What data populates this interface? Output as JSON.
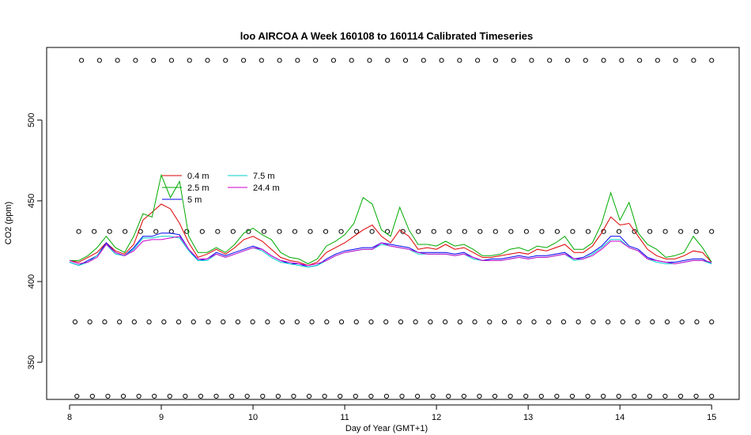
{
  "chart_data": {
    "type": "line",
    "title": "loo AIRCOA A  Week 160108 to 160114  Calibrated Timeseries",
    "xlabel": "Day of Year (GMT+1)",
    "ylabel": "CO2 (ppm)",
    "xlim": [
      7.75,
      15.3
    ],
    "ylim": [
      327,
      545
    ],
    "x_ticks": [
      8,
      9,
      10,
      11,
      12,
      13,
      14,
      15
    ],
    "x_tick_labels": [
      "8",
      "9",
      "10",
      "11",
      "12",
      "13",
      "14",
      "15"
    ],
    "y_ticks": [
      350,
      400,
      450,
      500
    ],
    "y_tick_labels": [
      "350",
      "400",
      "450",
      "500"
    ],
    "legend_position": "top-left",
    "series": [
      {
        "name": "0.4 m",
        "color": "#dd0000",
        "x": [
          8.0,
          8.1,
          8.2,
          8.3,
          8.4,
          8.5,
          8.6,
          8.7,
          8.8,
          8.9,
          9.0,
          9.1,
          9.2,
          9.3,
          9.4,
          9.5,
          9.6,
          9.7,
          9.8,
          9.9,
          10.0,
          10.1,
          10.2,
          10.3,
          10.4,
          10.5,
          10.6,
          10.7,
          10.8,
          10.9,
          11.0,
          11.1,
          11.2,
          11.3,
          11.4,
          11.5,
          11.6,
          11.7,
          11.8,
          11.9,
          12.0,
          12.1,
          12.2,
          12.3,
          12.4,
          12.5,
          12.6,
          12.7,
          12.8,
          12.9,
          13.0,
          13.1,
          13.2,
          13.3,
          13.4,
          13.5,
          13.6,
          13.7,
          13.8,
          13.9,
          14.0,
          14.1,
          14.2,
          14.3,
          14.4,
          14.5,
          14.6,
          14.7,
          14.8,
          14.9,
          15.0
        ],
        "y": [
          413,
          412,
          415,
          418,
          424,
          419,
          417,
          423,
          438,
          443,
          448,
          445,
          436,
          424,
          415,
          417,
          420,
          417,
          421,
          426,
          428,
          425,
          420,
          415,
          413,
          412,
          410,
          412,
          418,
          421,
          424,
          428,
          432,
          435,
          428,
          424,
          432,
          428,
          420,
          421,
          420,
          423,
          420,
          421,
          418,
          415,
          415,
          416,
          417,
          418,
          417,
          420,
          419,
          421,
          423,
          418,
          418,
          422,
          430,
          440,
          435,
          436,
          428,
          420,
          416,
          414,
          414,
          416,
          419,
          418,
          412
        ]
      },
      {
        "name": "2.5 m",
        "color": "#00aa00",
        "x": [
          8.0,
          8.1,
          8.2,
          8.3,
          8.4,
          8.5,
          8.6,
          8.7,
          8.8,
          8.9,
          9.0,
          9.1,
          9.2,
          9.3,
          9.4,
          9.5,
          9.6,
          9.7,
          9.8,
          9.9,
          10.0,
          10.1,
          10.2,
          10.3,
          10.4,
          10.5,
          10.6,
          10.7,
          10.8,
          10.9,
          11.0,
          11.1,
          11.2,
          11.3,
          11.4,
          11.5,
          11.6,
          11.7,
          11.8,
          11.9,
          12.0,
          12.1,
          12.2,
          12.3,
          12.4,
          12.5,
          12.6,
          12.7,
          12.8,
          12.9,
          13.0,
          13.1,
          13.2,
          13.3,
          13.4,
          13.5,
          13.6,
          13.7,
          13.8,
          13.9,
          14.0,
          14.1,
          14.2,
          14.3,
          14.4,
          14.5,
          14.6,
          14.7,
          14.8,
          14.9,
          15.0
        ],
        "y": [
          413,
          413,
          416,
          421,
          428,
          421,
          418,
          428,
          442,
          440,
          466,
          452,
          462,
          428,
          418,
          418,
          421,
          418,
          423,
          430,
          433,
          429,
          426,
          418,
          415,
          414,
          411,
          414,
          422,
          425,
          429,
          436,
          452,
          448,
          432,
          428,
          446,
          432,
          423,
          423,
          422,
          425,
          422,
          423,
          420,
          416,
          416,
          417,
          420,
          421,
          419,
          422,
          421,
          424,
          428,
          420,
          420,
          424,
          436,
          455,
          438,
          449,
          430,
          423,
          420,
          415,
          416,
          418,
          428,
          421,
          412
        ]
      },
      {
        "name": "5 m",
        "color": "#0000ee",
        "x": [
          8.0,
          8.1,
          8.2,
          8.3,
          8.4,
          8.5,
          8.6,
          8.7,
          8.8,
          8.9,
          9.0,
          9.1,
          9.2,
          9.3,
          9.4,
          9.5,
          9.6,
          9.7,
          9.8,
          9.9,
          10.0,
          10.1,
          10.2,
          10.3,
          10.4,
          10.5,
          10.6,
          10.7,
          10.8,
          10.9,
          11.0,
          11.1,
          11.2,
          11.3,
          11.4,
          11.5,
          11.6,
          11.7,
          11.8,
          11.9,
          12.0,
          12.1,
          12.2,
          12.3,
          12.4,
          12.5,
          12.6,
          12.7,
          12.8,
          12.9,
          13.0,
          13.1,
          13.2,
          13.3,
          13.4,
          13.5,
          13.6,
          13.7,
          13.8,
          13.9,
          14.0,
          14.1,
          14.2,
          14.3,
          14.4,
          14.5,
          14.6,
          14.7,
          14.8,
          14.9,
          15.0
        ],
        "y": [
          412,
          410,
          413,
          416,
          424,
          418,
          416,
          421,
          428,
          428,
          430,
          430,
          429,
          420,
          413,
          414,
          418,
          416,
          418,
          420,
          422,
          420,
          416,
          413,
          411,
          411,
          409,
          410,
          414,
          417,
          419,
          420,
          421,
          421,
          424,
          423,
          422,
          421,
          418,
          418,
          418,
          418,
          417,
          418,
          415,
          413,
          414,
          414,
          415,
          416,
          415,
          416,
          416,
          417,
          418,
          414,
          415,
          418,
          422,
          428,
          428,
          422,
          420,
          415,
          413,
          412,
          412,
          413,
          414,
          414,
          411
        ]
      },
      {
        "name": "7.5 m",
        "color": "#00cccc",
        "x": [
          8.0,
          8.1,
          8.2,
          8.3,
          8.4,
          8.5,
          8.6,
          8.7,
          8.8,
          8.9,
          9.0,
          9.1,
          9.2,
          9.3,
          9.4,
          9.5,
          9.6,
          9.7,
          9.8,
          9.9,
          10.0,
          10.1,
          10.2,
          10.3,
          10.4,
          10.5,
          10.6,
          10.7,
          10.8,
          10.9,
          11.0,
          11.1,
          11.2,
          11.3,
          11.4,
          11.5,
          11.6,
          11.7,
          11.8,
          11.9,
          12.0,
          12.1,
          12.2,
          12.3,
          12.4,
          12.5,
          12.6,
          12.7,
          12.8,
          12.9,
          13.0,
          13.1,
          13.2,
          13.3,
          13.4,
          13.5,
          13.6,
          13.7,
          13.8,
          13.9,
          14.0,
          14.1,
          14.2,
          14.3,
          14.4,
          14.5,
          14.6,
          14.7,
          14.8,
          14.9,
          15.0
        ],
        "y": [
          412,
          410,
          412,
          416,
          423,
          417,
          416,
          420,
          427,
          427,
          428,
          428,
          427,
          419,
          413,
          413,
          417,
          415,
          417,
          419,
          421,
          419,
          415,
          412,
          411,
          410,
          409,
          410,
          413,
          416,
          418,
          419,
          420,
          420,
          423,
          422,
          421,
          420,
          417,
          417,
          417,
          417,
          416,
          417,
          414,
          413,
          413,
          413,
          414,
          415,
          414,
          415,
          415,
          416,
          417,
          413,
          414,
          417,
          421,
          426,
          426,
          421,
          419,
          414,
          412,
          411,
          411,
          412,
          413,
          413,
          411
        ]
      },
      {
        "name": "24.4 m",
        "color": "#cc00cc",
        "x": [
          8.0,
          8.1,
          8.2,
          8.3,
          8.4,
          8.5,
          8.6,
          8.7,
          8.8,
          8.9,
          9.0,
          9.1,
          9.2,
          9.3,
          9.4,
          9.5,
          9.6,
          9.7,
          9.8,
          9.9,
          10.0,
          10.1,
          10.2,
          10.3,
          10.4,
          10.5,
          10.6,
          10.7,
          10.8,
          10.9,
          11.0,
          11.1,
          11.2,
          11.3,
          11.4,
          11.5,
          11.6,
          11.7,
          11.8,
          11.9,
          12.0,
          12.1,
          12.2,
          12.3,
          12.4,
          12.5,
          12.6,
          12.7,
          12.8,
          12.9,
          13.0,
          13.1,
          13.2,
          13.3,
          13.4,
          13.5,
          13.6,
          13.7,
          13.8,
          13.9,
          14.0,
          14.1,
          14.2,
          14.3,
          14.4,
          14.5,
          14.6,
          14.7,
          14.8,
          14.9,
          15.0
        ],
        "y": [
          413,
          411,
          412,
          415,
          423,
          418,
          416,
          419,
          425,
          426,
          426,
          427,
          428,
          420,
          414,
          414,
          417,
          415,
          417,
          419,
          421,
          420,
          416,
          413,
          412,
          411,
          410,
          411,
          413,
          416,
          418,
          419,
          420,
          420,
          424,
          422,
          421,
          420,
          418,
          417,
          417,
          417,
          416,
          417,
          415,
          413,
          413,
          413,
          414,
          415,
          414,
          415,
          415,
          416,
          417,
          414,
          414,
          416,
          420,
          425,
          425,
          421,
          419,
          414,
          413,
          412,
          411,
          412,
          413,
          413,
          412
        ]
      }
    ],
    "reference_point_rows": [
      {
        "y": 537,
        "x_start": 8.13,
        "x_end": 15.0,
        "count": 36
      },
      {
        "y": 431,
        "x_start": 8.1,
        "x_end": 15.0,
        "count": 42
      },
      {
        "y": 375,
        "x_start": 8.06,
        "x_end": 15.0,
        "count": 44
      },
      {
        "y": 329,
        "x_start": 8.08,
        "x_end": 15.0,
        "count": 42
      }
    ]
  }
}
